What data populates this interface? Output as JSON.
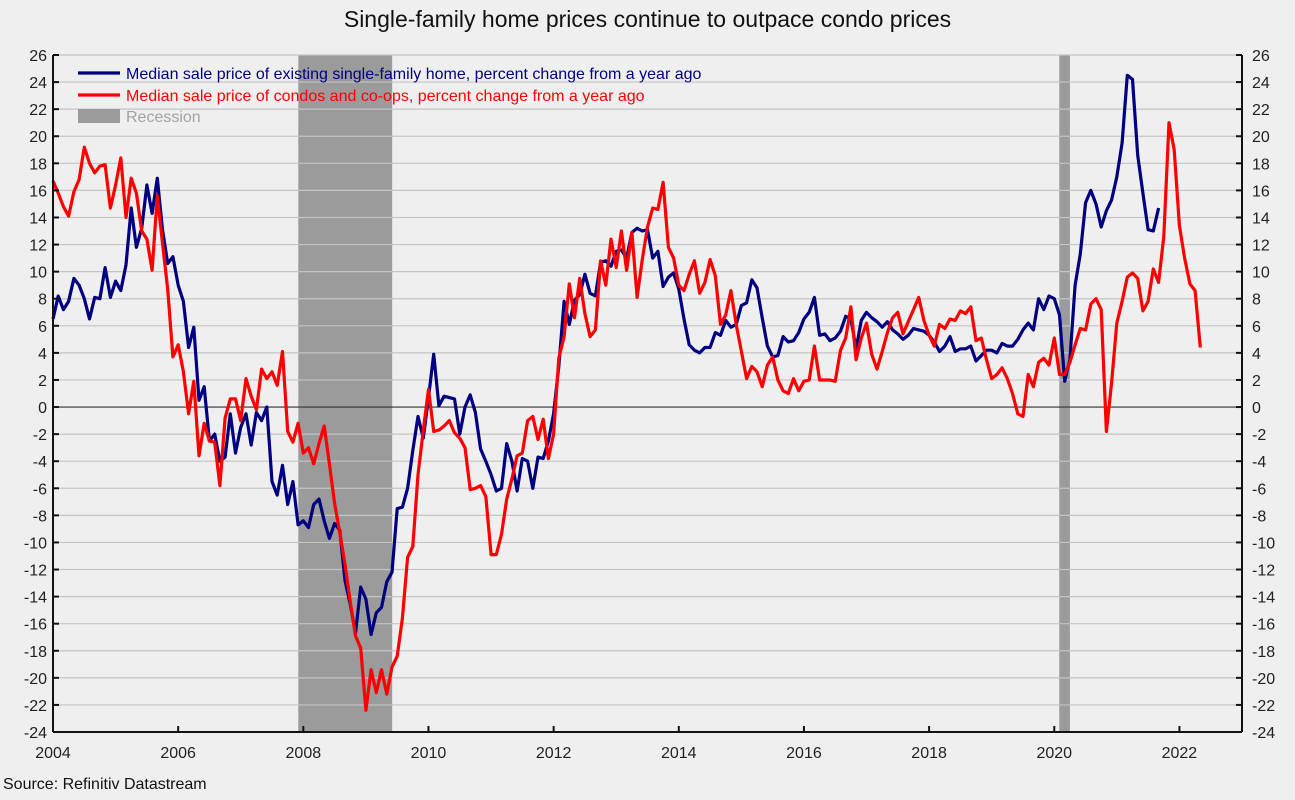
{
  "chart_data": {
    "type": "line",
    "title": "Single-family home prices continue to outpace condo prices",
    "source": "Source: Refinitiv Datastream",
    "xlabel": "",
    "ylabel": "",
    "xlim": [
      2004,
      2023
    ],
    "ylim": [
      -24,
      26
    ],
    "x_ticks": [
      "2004",
      "2006",
      "2008",
      "2010",
      "2012",
      "2014",
      "2016",
      "2018",
      "2020",
      "2022"
    ],
    "x_tick_values": [
      2004,
      2006,
      2008,
      2010,
      2012,
      2014,
      2016,
      2018,
      2020,
      2022
    ],
    "y_ticks": [
      26,
      24,
      22,
      20,
      18,
      16,
      14,
      12,
      10,
      8,
      6,
      4,
      2,
      0,
      -2,
      -4,
      -6,
      -8,
      -10,
      -12,
      -14,
      -16,
      -18,
      -20,
      -22,
      -24
    ],
    "y_tick_labels": [
      "26",
      "24",
      "22",
      "20",
      "18",
      "16",
      "14",
      "12",
      "10",
      "8",
      "6",
      "4",
      "2",
      "0",
      "-2",
      "-4",
      "-6",
      "-8",
      "-10",
      "-12",
      "-14",
      "-16",
      "-18",
      "-20",
      "-22",
      "-24"
    ],
    "grid": true,
    "zero_line": true,
    "legend_position": "top-left",
    "recessions": [
      {
        "label": "Recession",
        "start": 2007.92,
        "end": 2009.42,
        "color": "#9b9b9b"
      },
      {
        "label": "Recession",
        "start": 2020.08,
        "end": 2020.25,
        "color": "#9b9b9b"
      }
    ],
    "series": [
      {
        "name": "Median sale price of existing single-family home,  percent change from a year ago",
        "color": "#000080",
        "start": 2004.0,
        "step_months": 1,
        "values": [
          6.5,
          8.2,
          7.2,
          7.8,
          9.5,
          9.0,
          8.0,
          6.5,
          8.1,
          8.0,
          10.3,
          8.1,
          9.3,
          8.6,
          10.5,
          14.7,
          11.8,
          13.2,
          16.4,
          14.3,
          16.9,
          13.1,
          10.6,
          11.1,
          9.0,
          7.8,
          4.4,
          5.9,
          0.5,
          1.5,
          -2.5,
          -2.0,
          -4.0,
          -3.7,
          -0.5,
          -3.4,
          -1.5,
          -0.5,
          -2.8,
          -0.4,
          -1.0,
          0.0,
          -5.5,
          -6.5,
          -4.3,
          -7.2,
          -5.5,
          -8.7,
          -8.4,
          -8.9,
          -7.2,
          -6.8,
          -8.4,
          -9.7,
          -8.6,
          -9.1,
          -12.8,
          -14.6,
          -16.7,
          -13.3,
          -14.2,
          -16.8,
          -15.2,
          -14.8,
          -12.9,
          -12.2,
          -7.5,
          -7.4,
          -6.0,
          -3.2,
          -0.7,
          -2.3,
          0.7,
          3.9,
          0.1,
          0.8,
          0.7,
          0.6,
          -2.0,
          0.0,
          0.9,
          -0.4,
          -3.1,
          -4.0,
          -5.0,
          -6.2,
          -6.0,
          -2.7,
          -4.0,
          -6.2,
          -3.8,
          -4.0,
          -6.0,
          -3.7,
          -3.8,
          -2.5,
          -0.5,
          3.0,
          7.8,
          6.1,
          7.9,
          8.3,
          9.8,
          8.4,
          8.2,
          10.7,
          10.8,
          10.4,
          11.5,
          11.6,
          11.0,
          12.9,
          13.2,
          13.0,
          13.1,
          11.0,
          11.5,
          8.9,
          9.6,
          9.9,
          8.7,
          6.5,
          4.6,
          4.2,
          4.0,
          4.4,
          4.4,
          5.5,
          5.3,
          6.4,
          5.9,
          6.1,
          7.5,
          7.7,
          9.4,
          8.8,
          6.6,
          4.5,
          3.7,
          3.8,
          5.2,
          4.8,
          4.9,
          5.5,
          6.5,
          7.0,
          8.1,
          5.3,
          5.4,
          4.9,
          5.1,
          5.6,
          6.7,
          6.5,
          4.3,
          6.4,
          7.0,
          6.6,
          6.3,
          5.9,
          6.3,
          5.7,
          5.4,
          5.0,
          5.3,
          5.8,
          5.7,
          5.6,
          5.3,
          4.8,
          4.1,
          4.5,
          5.2,
          4.1,
          4.3,
          4.3,
          4.5,
          3.4,
          3.8,
          4.2,
          4.2,
          4.0,
          4.7,
          4.5,
          4.5,
          5.0,
          5.7,
          6.2,
          5.7,
          8.0,
          7.2,
          8.2,
          8.0,
          6.8,
          1.9,
          3.5,
          9.0,
          11.3,
          15.1,
          16.0,
          15.0,
          13.3,
          14.5,
          15.3,
          17.0,
          19.5,
          24.5,
          24.2,
          18.6,
          15.8,
          13.1,
          13.0,
          14.7
        ]
      },
      {
        "name": "Median sale price of condos and co-ops,  percent change from a year ago",
        "color": "#ff0000",
        "start": 2004.0,
        "step_months": 1,
        "values": [
          16.7,
          15.8,
          14.8,
          14.1,
          15.9,
          16.8,
          19.2,
          18.0,
          17.3,
          17.8,
          17.9,
          14.7,
          16.4,
          18.4,
          14.0,
          16.9,
          15.8,
          13.0,
          12.4,
          10.1,
          15.6,
          12.1,
          8.7,
          3.7,
          4.6,
          2.6,
          -0.5,
          1.9,
          -3.6,
          -1.2,
          -2.5,
          -2.6,
          -5.8,
          -0.8,
          0.6,
          0.6,
          -1.0,
          2.1,
          0.8,
          -0.2,
          2.8,
          2.1,
          2.6,
          1.6,
          4.1,
          -1.8,
          -2.6,
          -1.2,
          -3.4,
          -3.0,
          -4.2,
          -2.7,
          -1.4,
          -4.2,
          -7.1,
          -9.3,
          -11.6,
          -14.4,
          -16.9,
          -17.8,
          -22.4,
          -19.4,
          -21.1,
          -19.4,
          -21.2,
          -19.2,
          -18.4,
          -15.6,
          -11.1,
          -10.3,
          -5.0,
          -1.7,
          1.3,
          -1.8,
          -1.7,
          -1.4,
          -1.0,
          -1.9,
          -2.3,
          -3.0,
          -6.1,
          -6.0,
          -5.8,
          -6.6,
          -10.9,
          -10.9,
          -9.4,
          -6.8,
          -5.3,
          -3.6,
          -3.4,
          -1.0,
          -0.7,
          -2.4,
          -0.9,
          -3.8,
          -2.0,
          3.6,
          5.2,
          9.1,
          6.6,
          9.5,
          6.9,
          5.2,
          5.7,
          10.8,
          9.0,
          12.4,
          10.3,
          13.0,
          10.1,
          12.9,
          8.1,
          10.9,
          13.3,
          14.7,
          14.6,
          16.6,
          11.8,
          11.0,
          9.0,
          8.6,
          9.8,
          10.8,
          8.4,
          9.2,
          10.9,
          9.7,
          6.1,
          6.8,
          8.6,
          6.1,
          4.1,
          2.1,
          3.0,
          2.6,
          1.5,
          3.1,
          3.7,
          2.0,
          1.2,
          1.0,
          2.1,
          1.2,
          1.9,
          2.0,
          4.5,
          2.0,
          2.0,
          2.0,
          1.9,
          4.2,
          5.1,
          7.4,
          3.5,
          5.1,
          6.2,
          3.9,
          2.8,
          4.1,
          5.5,
          6.6,
          7.0,
          5.4,
          6.3,
          7.2,
          8.1,
          6.4,
          5.3,
          4.5,
          6.1,
          5.8,
          6.5,
          6.4,
          7.1,
          6.9,
          7.4,
          4.9,
          5.1,
          3.5,
          2.1,
          2.4,
          2.9,
          2.1,
          1.0,
          -0.5,
          -0.7,
          2.4,
          1.5,
          3.3,
          3.6,
          3.1,
          5.1,
          2.4,
          2.4,
          3.3,
          4.6,
          5.8,
          5.7,
          7.6,
          8.0,
          7.2,
          -1.8,
          1.8,
          6.2,
          7.8,
          9.6,
          9.9,
          9.5,
          7.1,
          7.8,
          10.2,
          9.2,
          12.6,
          21.0,
          19.0,
          13.4,
          11.0,
          9.1,
          8.6,
          4.4
        ]
      }
    ]
  }
}
